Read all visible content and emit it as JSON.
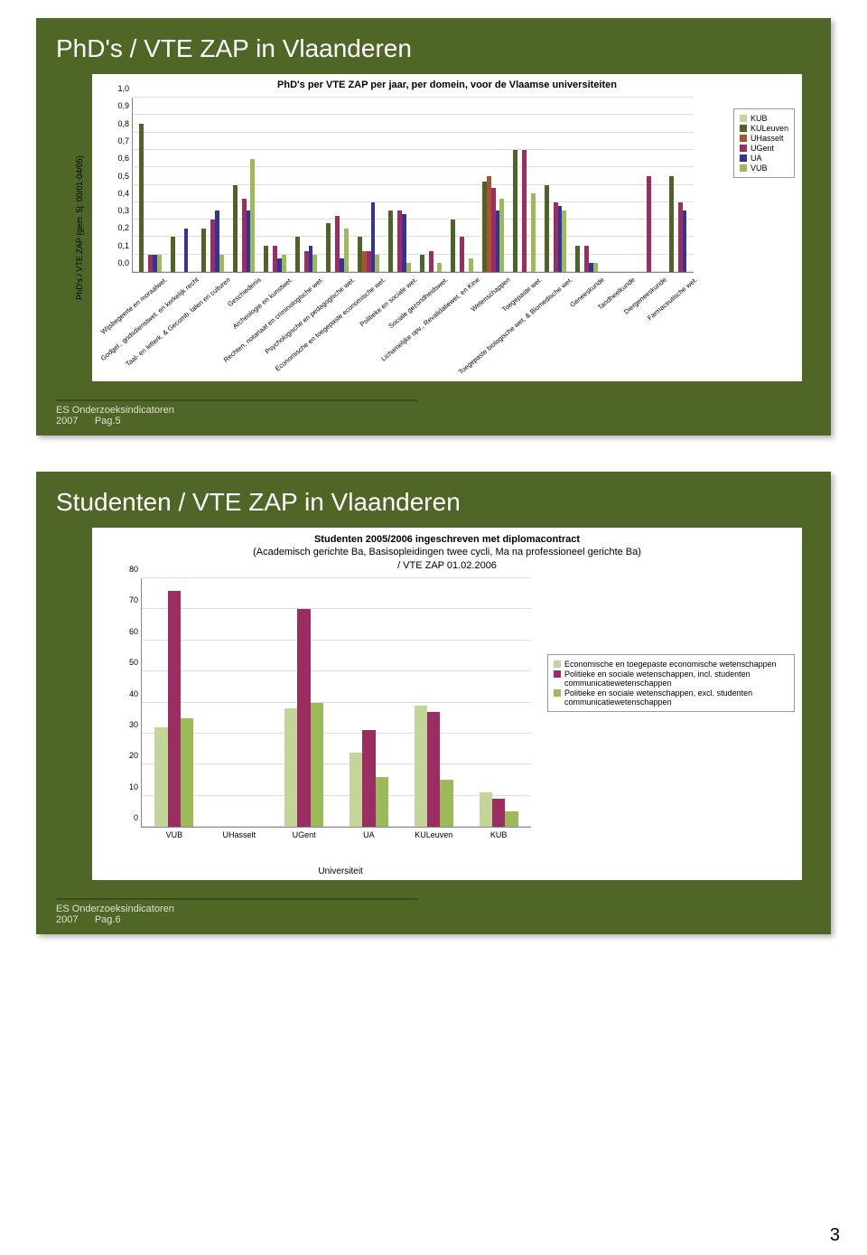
{
  "page_number": "3",
  "slide1": {
    "title": "PhD's / VTE ZAP in Vlaanderen",
    "chart_title": "PhD's per VTE ZAP per jaar, per domein, voor de Vlaamse universiteiten",
    "ylabel": "PhD's / VTE ZAP (gem. 5j: 00/01-04/05)",
    "yticks": [
      "0,0",
      "0,1",
      "0,2",
      "0,3",
      "0,4",
      "0,5",
      "0,6",
      "0,7",
      "0,8",
      "0,9",
      "1,0"
    ],
    "ylim": [
      0,
      1.0
    ],
    "series": [
      {
        "name": "KUB",
        "color": "#c2d69a"
      },
      {
        "name": "KULeuven",
        "color": "#4f6228"
      },
      {
        "name": "UHasselt",
        "color": "#ad5133"
      },
      {
        "name": "UGent",
        "color": "#9b2d62"
      },
      {
        "name": "UA",
        "color": "#333399"
      },
      {
        "name": "VUB",
        "color": "#9bbb59"
      }
    ],
    "categories": [
      {
        "label": "Wijsbegeerte en moraalwet.",
        "v": [
          null,
          0.85,
          null,
          0.1,
          0.1,
          0.1
        ]
      },
      {
        "label": "Godgel., godsdienstwet. en kerkelijk recht",
        "v": [
          null,
          0.2,
          null,
          null,
          0.25,
          null
        ]
      },
      {
        "label": "Taal- en letterk. & Gecomb. talen en culturen",
        "v": [
          null,
          0.25,
          null,
          0.3,
          0.35,
          0.1
        ]
      },
      {
        "label": "Geschiedenis",
        "v": [
          null,
          0.5,
          null,
          0.42,
          0.35,
          0.65
        ]
      },
      {
        "label": "Archeologie en kunstwet.",
        "v": [
          null,
          0.15,
          null,
          0.15,
          0.08,
          0.1
        ]
      },
      {
        "label": "Rechten, notariaat en criminologische wet.",
        "v": [
          null,
          0.2,
          null,
          0.12,
          0.15,
          0.1
        ]
      },
      {
        "label": "Psychologische en pedagogische wet.",
        "v": [
          null,
          0.28,
          null,
          0.32,
          0.08,
          0.25
        ]
      },
      {
        "label": "Economische en toegepaste economische wet.",
        "v": [
          null,
          0.2,
          0.12,
          0.12,
          0.4,
          0.1
        ]
      },
      {
        "label": "Politieke en sociale wet.",
        "v": [
          null,
          0.35,
          null,
          0.35,
          0.33,
          0.05
        ]
      },
      {
        "label": "Sociale gezondheidswet.",
        "v": [
          null,
          0.1,
          null,
          0.12,
          null,
          0.05
        ]
      },
      {
        "label": "Lichamelijke opv., Revalidatiewet. en Kine",
        "v": [
          null,
          0.3,
          null,
          0.2,
          null,
          0.08
        ]
      },
      {
        "label": "Wetenschappen",
        "v": [
          null,
          0.52,
          0.55,
          0.48,
          0.35,
          0.42
        ]
      },
      {
        "label": "Toegepaste wet.",
        "v": [
          null,
          0.7,
          null,
          0.7,
          null,
          0.45
        ]
      },
      {
        "label": "Toegepaste biologische wet. & Biomedische wet.",
        "v": [
          null,
          0.5,
          null,
          0.4,
          0.38,
          0.35
        ]
      },
      {
        "label": "Geneeskunde",
        "v": [
          null,
          0.15,
          null,
          0.15,
          0.05,
          0.05
        ]
      },
      {
        "label": "Tandheelkunde",
        "v": [
          null,
          null,
          null,
          null,
          null,
          null
        ]
      },
      {
        "label": "Diergeneeskunde",
        "v": [
          null,
          null,
          null,
          0.55,
          null,
          null
        ]
      },
      {
        "label": "Farmaceutische wet.",
        "v": [
          null,
          0.55,
          null,
          0.4,
          0.35,
          null
        ]
      }
    ],
    "footer": "ES Onderzoeksindicatoren",
    "footer_year": "2007",
    "footer_page": "Pag.5"
  },
  "slide2": {
    "title": "Studenten / VTE ZAP in Vlaanderen",
    "chart_title_l1": "Studenten 2005/2006 ingeschreven met diplomacontract",
    "chart_title_l2": "(Academisch gerichte Ba, Basisopleidingen twee cycli, Ma na professioneel gerichte Ba)",
    "chart_title_l3": "/ VTE ZAP 01.02.2006",
    "xlabel": "Universiteit",
    "yticks": [
      "0",
      "10",
      "20",
      "30",
      "40",
      "50",
      "60",
      "70",
      "80"
    ],
    "ylim": [
      0,
      80
    ],
    "series": [
      {
        "name": "Economische en toegepaste economische wetenschappen",
        "color": "#c2d69a"
      },
      {
        "name": "Politieke en sociale wetenschappen, incl. studenten communicatiewetenschappen",
        "color": "#9b2d62"
      },
      {
        "name": "Politieke en sociale wetenschappen, excl. studenten communicatiewetenschappen",
        "color": "#9bbb59"
      }
    ],
    "categories": [
      {
        "label": "VUB",
        "v": [
          32,
          76,
          35
        ]
      },
      {
        "label": "UHasselt",
        "v": [
          null,
          null,
          null
        ]
      },
      {
        "label": "UGent",
        "v": [
          38,
          70,
          40
        ]
      },
      {
        "label": "UA",
        "v": [
          24,
          31,
          16
        ]
      },
      {
        "label": "KULeuven",
        "v": [
          39,
          37,
          15
        ]
      },
      {
        "label": "KUB",
        "v": [
          11,
          9,
          5
        ]
      }
    ],
    "footer": "ES Onderzoeksindicatoren",
    "footer_year": "2007",
    "footer_page": "Pag.6"
  }
}
